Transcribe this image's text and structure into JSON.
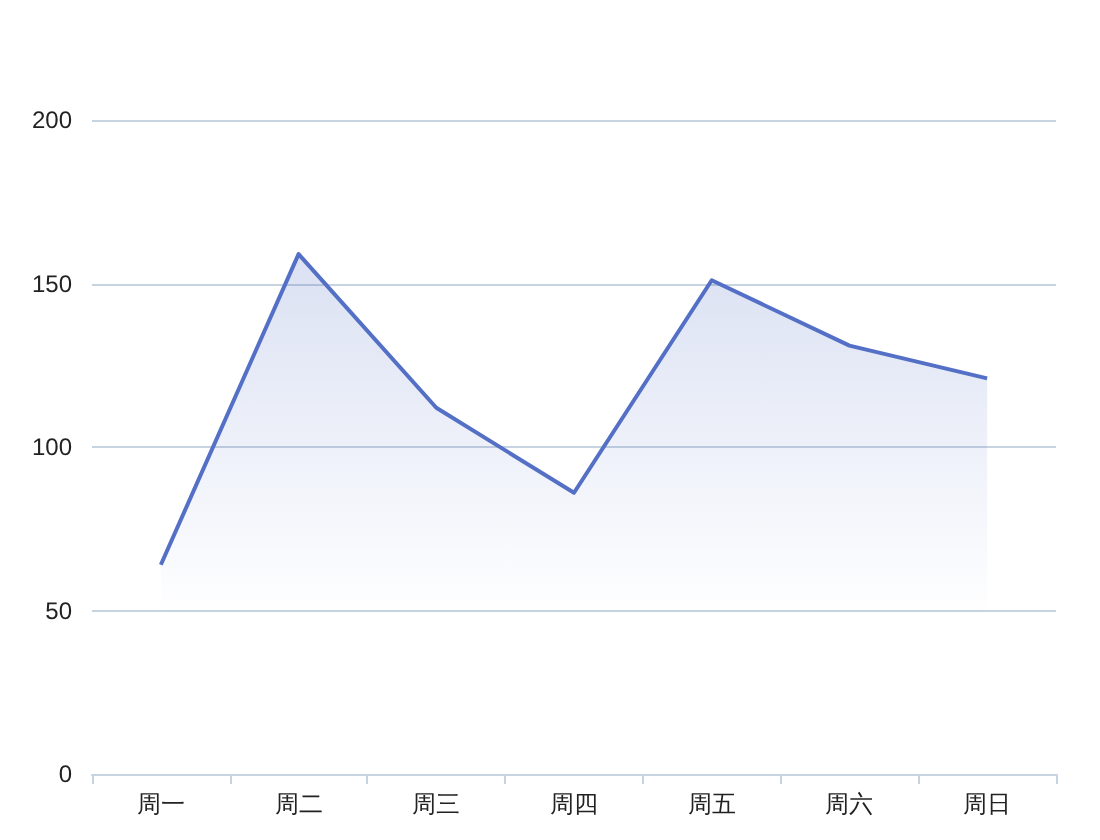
{
  "chart_data": {
    "type": "area",
    "categories": [
      "周一",
      "周二",
      "周三",
      "周四",
      "周五",
      "周六",
      "周日"
    ],
    "series": [
      {
        "color": "#5470c6",
        "values": [
          64,
          159,
          112,
          86,
          151,
          131,
          121
        ]
      }
    ],
    "ylim": [
      0,
      200
    ],
    "yticks": [
      0,
      50,
      100,
      150,
      200
    ],
    "grid": "y",
    "marker": "none"
  }
}
